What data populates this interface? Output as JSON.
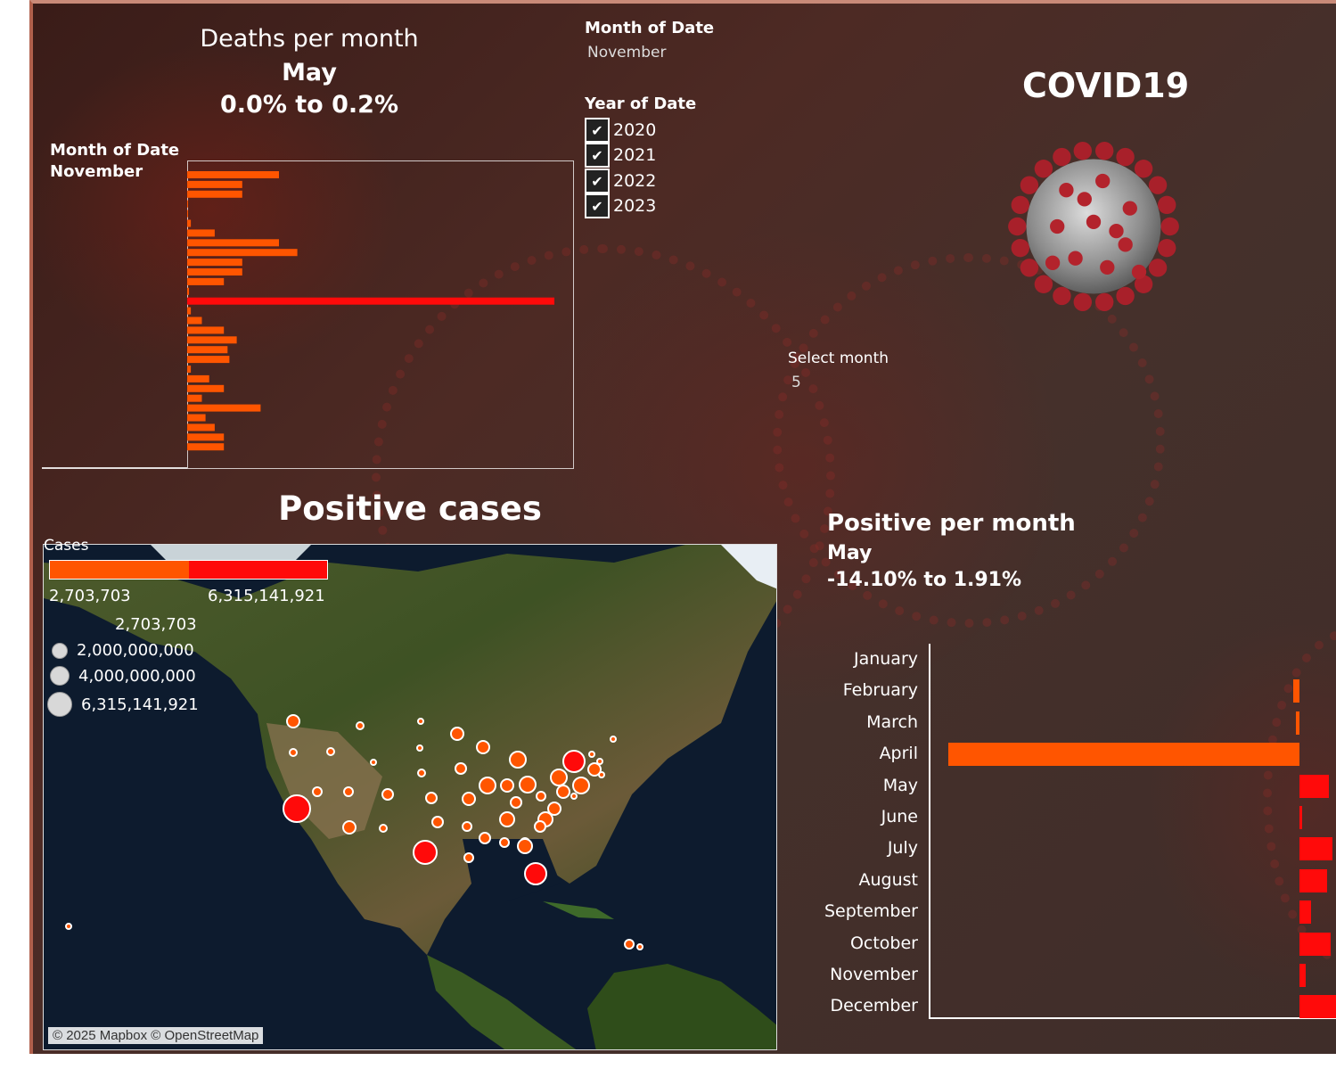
{
  "deaths": {
    "title": "Deaths per month",
    "month": "May",
    "range": "0.0% to 0.2%",
    "filter_label": "Month of Date",
    "filter_value": "November",
    "bar_values_pct": [
      -0.05,
      -0.03,
      -0.03,
      0,
      0,
      0.002,
      0.015,
      0.05,
      0.06,
      0.03,
      0.03,
      0.02,
      0.001,
      0.2,
      0.002,
      -0.008,
      -0.02,
      -0.027,
      -0.022,
      -0.023,
      0.002,
      0.012,
      -0.02,
      -0.008,
      0.04,
      0.01,
      0.015,
      0.02,
      0.02
    ]
  },
  "filters": {
    "month_label": "Month of Date",
    "month_value": "November",
    "year_label": "Year of Date",
    "years": [
      {
        "label": "2020",
        "checked": true
      },
      {
        "label": "2021",
        "checked": true
      },
      {
        "label": "2022",
        "checked": true
      },
      {
        "label": "2023",
        "checked": true
      }
    ],
    "select_month_label": "Select month",
    "select_month_value": "5"
  },
  "header": {
    "title": "COVID19",
    "icon": "virus-icon"
  },
  "positive_cases": {
    "title": "Positive cases",
    "legend_title": "Cases",
    "legend_min": "2,703,703",
    "legend_max": "6,315,141,921",
    "size_legend": [
      "2,703,703",
      "2,000,000,000",
      "4,000,000,000",
      "6,315,141,921"
    ],
    "map_credit": "© 2025 Mapbox © OpenStreetMap",
    "colors": {
      "low": "#ff5500",
      "high": "#ff0a0a"
    }
  },
  "positive_per_month": {
    "title": "Positive per month",
    "month": "May",
    "range": "-14.10% to 1.91%",
    "months": [
      "January",
      "February",
      "March",
      "April",
      "May",
      "June",
      "July",
      "August",
      "September",
      "October",
      "November",
      "December"
    ],
    "values_pct": [
      0.0,
      -0.25,
      -0.15,
      -14.1,
      1.41,
      0.09,
      1.55,
      1.3,
      0.55,
      1.5,
      0.28,
      1.91
    ],
    "colors": {
      "negative": "#ff5500",
      "positive": "#ff0a0a"
    }
  }
}
